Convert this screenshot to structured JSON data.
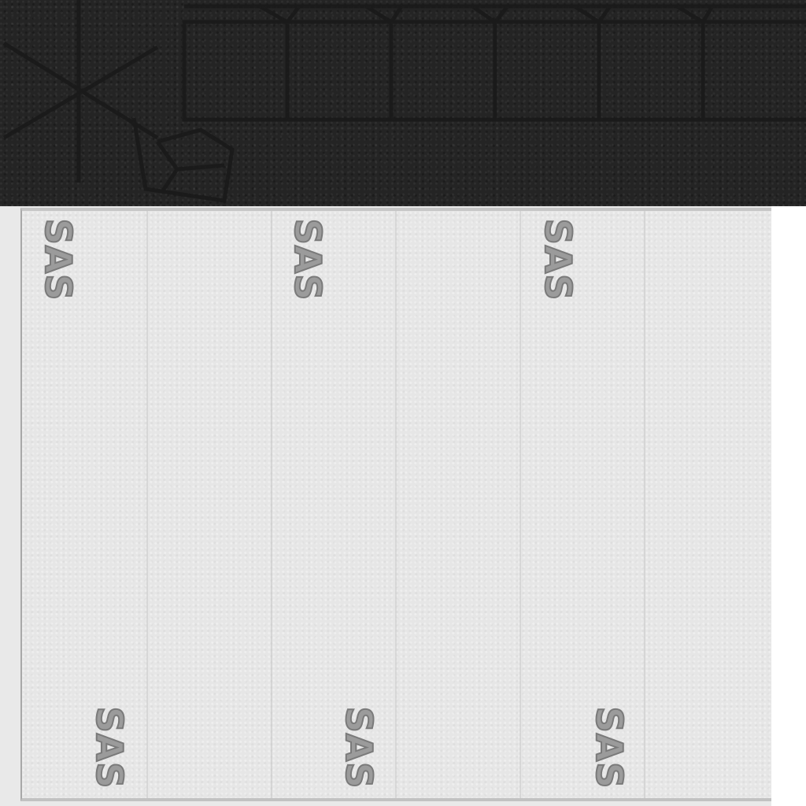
{
  "top_band": {
    "color": "#242424",
    "icons": [
      "asterisk-icon",
      "gift-box-icon"
    ]
  },
  "panel": {
    "color": "#e6e6e6",
    "marks": [
      {
        "label": "SAS"
      },
      {
        "label": "SAS"
      },
      {
        "label": "SAS"
      },
      {
        "label": "SAS"
      },
      {
        "label": "SAS"
      },
      {
        "label": "SAS"
      }
    ]
  }
}
